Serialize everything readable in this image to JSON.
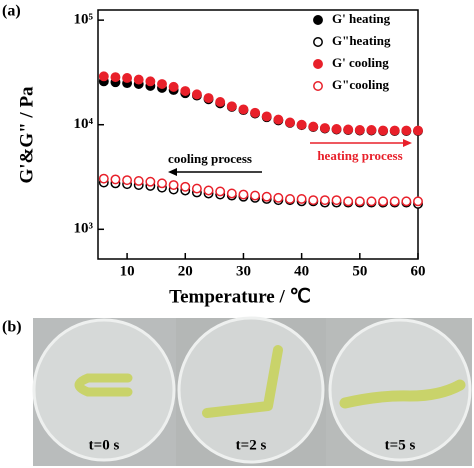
{
  "chart_data": {
    "type": "scatter",
    "panel_label": "(a)",
    "x_label": "Temperature / ℃",
    "y_label": "G'&G\" / Pa",
    "log_y": true,
    "legend": "top-right",
    "xlim": [
      5,
      60
    ],
    "xticks": [
      10,
      20,
      30,
      40,
      50,
      60
    ],
    "ylim": [
      520,
      125000
    ],
    "yticks": [
      {
        "value": 1000,
        "label": "10³"
      },
      {
        "value": 10000,
        "label": "10⁴"
      },
      {
        "value": 100000,
        "label": "10⁵"
      }
    ],
    "x": [
      6,
      8,
      10,
      12,
      14,
      16,
      18,
      20,
      22,
      24,
      26,
      28,
      30,
      32,
      34,
      36,
      38,
      40,
      42,
      44,
      46,
      48,
      50,
      52,
      54,
      56,
      58,
      60
    ],
    "series": [
      {
        "name": "G' heating",
        "color": "#000000",
        "filled": true,
        "values": [
          26000,
          25500,
          25000,
          24500,
          23500,
          22500,
          21500,
          20000,
          19000,
          17500,
          16000,
          14800,
          13800,
          12800,
          11800,
          11000,
          10400,
          9900,
          9500,
          9200,
          9000,
          8900,
          8800,
          8800,
          8700,
          8700,
          8700,
          8700
        ]
      },
      {
        "name": "G\"heating",
        "color": "#000000",
        "filled": false,
        "values": [
          2800,
          2750,
          2700,
          2650,
          2600,
          2500,
          2400,
          2350,
          2250,
          2200,
          2150,
          2100,
          2050,
          2000,
          1950,
          1900,
          1900,
          1850,
          1850,
          1800,
          1800,
          1800,
          1800,
          1800,
          1800,
          1800,
          1800,
          1750
        ]
      },
      {
        "name": "G' cooling",
        "color": "#e8202a",
        "filled": true,
        "values": [
          29000,
          28500,
          28000,
          27000,
          26000,
          24500,
          23000,
          21000,
          19500,
          18000,
          16500,
          15000,
          14000,
          13000,
          12000,
          11200,
          10500,
          10000,
          9600,
          9300,
          9100,
          9000,
          8900,
          8900,
          8800,
          8800,
          8800,
          8800
        ]
      },
      {
        "name": "G\"cooling",
        "color": "#e8202a",
        "filled": false,
        "values": [
          3050,
          3000,
          2950,
          2900,
          2850,
          2750,
          2650,
          2550,
          2450,
          2350,
          2300,
          2200,
          2150,
          2100,
          2050,
          2000,
          1950,
          1950,
          1900,
          1900,
          1900,
          1850,
          1850,
          1850,
          1850,
          1850,
          1850,
          1850
        ]
      }
    ],
    "annotations": [
      "cooling process",
      "heating process"
    ]
  },
  "panel_b": {
    "label": "(b)",
    "captions": [
      "t=0 s",
      "t=2 s",
      "t=5 s"
    ]
  }
}
